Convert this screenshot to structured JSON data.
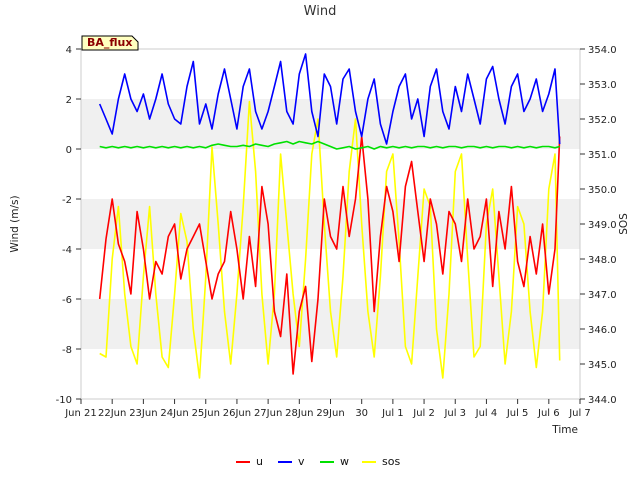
{
  "chart_data": {
    "type": "line",
    "title": "Wind",
    "badge": "BA_flux",
    "xlabel": "Time",
    "ylabel_left": "Wind (m/s)",
    "ylabel_right": "SOS",
    "ylim_left": [
      -10,
      4
    ],
    "ylim_right": [
      344,
      354
    ],
    "xlim": [
      0,
      16
    ],
    "x_ticks": [
      {
        "x": 0,
        "label": "Jun 21"
      },
      {
        "x": 1,
        "label": "22Jun"
      },
      {
        "x": 2,
        "label": "23Jun"
      },
      {
        "x": 3,
        "label": "24Jun"
      },
      {
        "x": 4,
        "label": "25Jun"
      },
      {
        "x": 5,
        "label": "26Jun"
      },
      {
        "x": 6,
        "label": "27Jun"
      },
      {
        "x": 7,
        "label": "28Jun"
      },
      {
        "x": 8,
        "label": "29Jun"
      },
      {
        "x": 9,
        "label": "30"
      },
      {
        "x": 10,
        "label": "Jul 1"
      },
      {
        "x": 11,
        "label": "Jul 2"
      },
      {
        "x": 12,
        "label": "Jul 3"
      },
      {
        "x": 13,
        "label": "Jul 4"
      },
      {
        "x": 14,
        "label": "Jul 5"
      },
      {
        "x": 15,
        "label": "Jul 6"
      },
      {
        "x": 16,
        "label": "Jul 7"
      }
    ],
    "y_ticks_left": [
      -10,
      -8,
      -6,
      -4,
      -2,
      0,
      2,
      4
    ],
    "y_ticks_right": [
      344.0,
      345.0,
      346.0,
      347.0,
      348.0,
      349.0,
      350.0,
      351.0,
      352.0,
      353.0,
      354.0
    ],
    "grid_bands": true,
    "legend": [
      "u",
      "v",
      "w",
      "sos"
    ],
    "series": [
      {
        "name": "u",
        "color": "#ff0000",
        "axis": "left",
        "x": [
          0.6,
          0.8,
          1.0,
          1.2,
          1.4,
          1.6,
          1.8,
          2.0,
          2.2,
          2.4,
          2.6,
          2.8,
          3.0,
          3.2,
          3.4,
          3.6,
          3.8,
          4.0,
          4.2,
          4.4,
          4.6,
          4.8,
          5.0,
          5.2,
          5.4,
          5.6,
          5.8,
          6.0,
          6.2,
          6.4,
          6.6,
          6.8,
          7.0,
          7.2,
          7.4,
          7.6,
          7.8,
          8.0,
          8.2,
          8.4,
          8.6,
          8.8,
          9.0,
          9.2,
          9.4,
          9.6,
          9.8,
          10.0,
          10.2,
          10.4,
          10.6,
          10.8,
          11.0,
          11.2,
          11.4,
          11.6,
          11.8,
          12.0,
          12.2,
          12.4,
          12.6,
          12.8,
          13.0,
          13.2,
          13.4,
          13.6,
          13.8,
          14.0,
          14.2,
          14.4,
          14.6,
          14.8,
          15.0,
          15.2,
          15.35
        ],
        "values": [
          -6.0,
          -3.6,
          -2.0,
          -3.8,
          -4.5,
          -5.8,
          -2.5,
          -4.0,
          -6.0,
          -4.5,
          -5.0,
          -3.5,
          -3.0,
          -5.2,
          -4.0,
          -3.5,
          -3.0,
          -4.5,
          -6.0,
          -5.0,
          -4.5,
          -2.5,
          -4.0,
          -6.0,
          -3.5,
          -5.5,
          -1.5,
          -3.0,
          -6.5,
          -7.5,
          -5.0,
          -9.0,
          -6.5,
          -5.5,
          -8.5,
          -6.0,
          -2.0,
          -3.5,
          -4.0,
          -1.5,
          -3.5,
          -2.0,
          0.5,
          -2.0,
          -6.5,
          -3.5,
          -1.5,
          -2.5,
          -4.5,
          -1.5,
          -0.5,
          -2.5,
          -4.5,
          -2.0,
          -3.0,
          -5.0,
          -2.5,
          -3.0,
          -4.5,
          -2.0,
          -4.0,
          -3.5,
          -2.0,
          -5.5,
          -2.5,
          -4.0,
          -1.5,
          -4.5,
          -5.5,
          -3.5,
          -5.0,
          -3.0,
          -5.8,
          -4.0,
          0.5
        ]
      },
      {
        "name": "v",
        "color": "#0000ff",
        "axis": "left",
        "x": [
          0.6,
          0.8,
          1.0,
          1.2,
          1.4,
          1.6,
          1.8,
          2.0,
          2.2,
          2.4,
          2.6,
          2.8,
          3.0,
          3.2,
          3.4,
          3.6,
          3.8,
          4.0,
          4.2,
          4.4,
          4.6,
          4.8,
          5.0,
          5.2,
          5.4,
          5.6,
          5.8,
          6.0,
          6.2,
          6.4,
          6.6,
          6.8,
          7.0,
          7.2,
          7.4,
          7.6,
          7.8,
          8.0,
          8.2,
          8.4,
          8.6,
          8.8,
          9.0,
          9.2,
          9.4,
          9.6,
          9.8,
          10.0,
          10.2,
          10.4,
          10.6,
          10.8,
          11.0,
          11.2,
          11.4,
          11.6,
          11.8,
          12.0,
          12.2,
          12.4,
          12.6,
          12.8,
          13.0,
          13.2,
          13.4,
          13.6,
          13.8,
          14.0,
          14.2,
          14.4,
          14.6,
          14.8,
          15.0,
          15.2,
          15.35
        ],
        "values": [
          1.8,
          1.2,
          0.6,
          2.0,
          3.0,
          2.0,
          1.5,
          2.2,
          1.2,
          2.0,
          3.0,
          1.8,
          1.2,
          1.0,
          2.5,
          3.5,
          1.0,
          1.8,
          0.8,
          2.2,
          3.2,
          2.0,
          0.8,
          2.5,
          3.2,
          1.5,
          0.8,
          1.5,
          2.5,
          3.5,
          1.5,
          1.0,
          3.0,
          3.8,
          1.5,
          0.5,
          3.0,
          2.5,
          1.0,
          2.8,
          3.2,
          1.5,
          0.5,
          2.0,
          2.8,
          1.0,
          0.2,
          1.5,
          2.5,
          3.0,
          1.2,
          2.0,
          0.5,
          2.5,
          3.2,
          1.5,
          0.8,
          2.5,
          1.5,
          3.0,
          2.0,
          1.0,
          2.8,
          3.3,
          2.0,
          1.0,
          2.5,
          3.0,
          1.5,
          2.0,
          2.8,
          1.5,
          2.2,
          3.2,
          0.2
        ]
      },
      {
        "name": "w",
        "color": "#00e000",
        "axis": "left",
        "x": [
          0.6,
          0.8,
          1.0,
          1.2,
          1.4,
          1.6,
          1.8,
          2.0,
          2.2,
          2.4,
          2.6,
          2.8,
          3.0,
          3.2,
          3.4,
          3.6,
          3.8,
          4.0,
          4.2,
          4.4,
          4.6,
          4.8,
          5.0,
          5.2,
          5.4,
          5.6,
          5.8,
          6.0,
          6.2,
          6.4,
          6.6,
          6.8,
          7.0,
          7.2,
          7.4,
          7.6,
          7.8,
          8.0,
          8.2,
          8.4,
          8.6,
          8.8,
          9.0,
          9.2,
          9.4,
          9.6,
          9.8,
          10.0,
          10.2,
          10.4,
          10.6,
          10.8,
          11.0,
          11.2,
          11.4,
          11.6,
          11.8,
          12.0,
          12.2,
          12.4,
          12.6,
          12.8,
          13.0,
          13.2,
          13.4,
          13.6,
          13.8,
          14.0,
          14.2,
          14.4,
          14.6,
          14.8,
          15.0,
          15.2,
          15.35
        ],
        "values": [
          0.1,
          0.05,
          0.1,
          0.05,
          0.1,
          0.05,
          0.1,
          0.05,
          0.1,
          0.05,
          0.1,
          0.05,
          0.1,
          0.05,
          0.1,
          0.05,
          0.1,
          0.05,
          0.15,
          0.2,
          0.15,
          0.1,
          0.1,
          0.15,
          0.1,
          0.2,
          0.15,
          0.1,
          0.2,
          0.25,
          0.3,
          0.2,
          0.3,
          0.25,
          0.2,
          0.3,
          0.2,
          0.1,
          0.0,
          0.05,
          0.1,
          0.0,
          0.05,
          0.1,
          0.0,
          0.1,
          0.05,
          0.1,
          0.05,
          0.1,
          0.05,
          0.1,
          0.1,
          0.05,
          0.1,
          0.05,
          0.1,
          0.1,
          0.05,
          0.1,
          0.1,
          0.05,
          0.1,
          0.05,
          0.1,
          0.1,
          0.05,
          0.1,
          0.05,
          0.1,
          0.05,
          0.1,
          0.1,
          0.05,
          0.1
        ]
      },
      {
        "name": "sos",
        "color": "#ffff00",
        "axis": "right",
        "x": [
          0.6,
          0.8,
          1.0,
          1.2,
          1.4,
          1.6,
          1.8,
          2.0,
          2.2,
          2.4,
          2.6,
          2.8,
          3.0,
          3.2,
          3.4,
          3.6,
          3.8,
          4.0,
          4.2,
          4.4,
          4.6,
          4.8,
          5.0,
          5.2,
          5.4,
          5.6,
          5.8,
          6.0,
          6.2,
          6.4,
          6.6,
          6.8,
          7.0,
          7.2,
          7.4,
          7.6,
          7.8,
          8.0,
          8.2,
          8.4,
          8.6,
          8.8,
          9.0,
          9.2,
          9.4,
          9.6,
          9.8,
          10.0,
          10.2,
          10.4,
          10.6,
          10.8,
          11.0,
          11.2,
          11.4,
          11.6,
          11.8,
          12.0,
          12.2,
          12.4,
          12.6,
          12.8,
          13.0,
          13.2,
          13.4,
          13.6,
          13.8,
          14.0,
          14.2,
          14.4,
          14.6,
          14.8,
          15.0,
          15.2,
          15.35
        ],
        "values": [
          345.3,
          345.2,
          348.0,
          349.5,
          347.0,
          345.5,
          345.0,
          347.5,
          349.5,
          347.0,
          345.2,
          344.9,
          347.0,
          349.3,
          348.5,
          346.0,
          344.6,
          347.5,
          351.2,
          349.0,
          346.5,
          345.0,
          347.0,
          349.5,
          352.5,
          350.5,
          347.0,
          345.0,
          347.0,
          351.0,
          349.0,
          347.0,
          345.5,
          348.0,
          351.0,
          352.0,
          349.0,
          346.5,
          345.2,
          347.5,
          350.5,
          352.0,
          349.0,
          346.5,
          345.2,
          347.5,
          350.5,
          351.0,
          348.5,
          345.5,
          345.0,
          347.5,
          350.0,
          349.5,
          346.0,
          344.6,
          347.0,
          350.5,
          351.0,
          348.0,
          345.2,
          345.5,
          349.0,
          350.0,
          347.5,
          345.0,
          346.5,
          349.5,
          349.0,
          346.5,
          344.9,
          346.5,
          350.0,
          351.0,
          345.1
        ]
      }
    ]
  }
}
